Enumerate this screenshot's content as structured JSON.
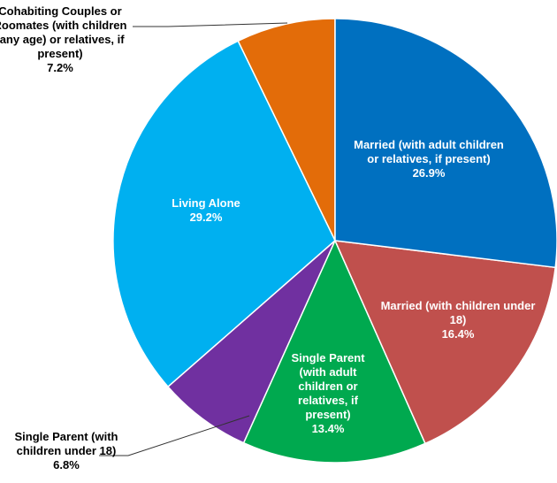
{
  "chart_data": {
    "type": "pie",
    "categories": [
      "Married (with adult children or relatives, if present)",
      "Married (with children under 18)",
      "Single Parent (with adult children or relatives, if present)",
      "Single Parent (with children under 18)",
      "Living Alone",
      "Cohabiting Couples or Roomates (with children (any age) or relatives, if present)"
    ],
    "values": [
      26.9,
      16.4,
      13.4,
      6.8,
      29.2,
      7.2
    ],
    "value_labels": [
      "26.9%",
      "16.4%",
      "13.4%",
      "6.8%",
      "29.2%",
      "7.2%"
    ],
    "colors": [
      "#0070c0",
      "#c0504d",
      "#00a94f",
      "#7030a0",
      "#00b0f0",
      "#e36c09"
    ]
  }
}
